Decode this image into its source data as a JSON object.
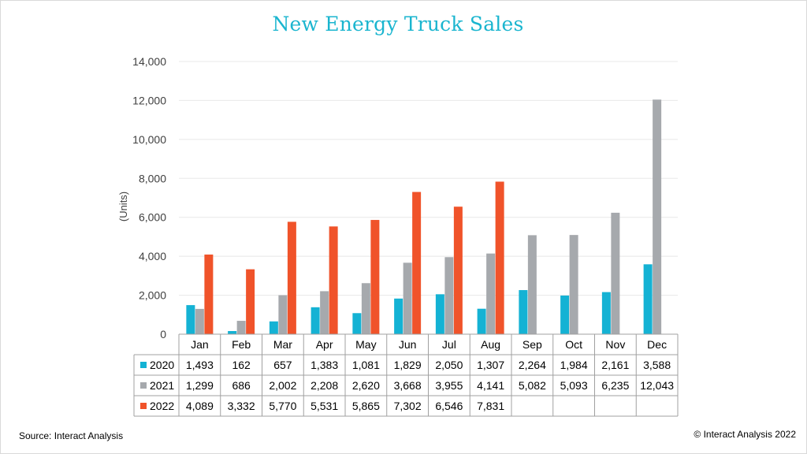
{
  "footer": {
    "source": "Source: Interact Analysis",
    "copyright": "© Interact Analysis 2022"
  },
  "colors": {
    "title": "#1ab5cf",
    "2020": "#14b2d4",
    "2021": "#a6a9ad",
    "2022": "#f0532a",
    "grid": "#e8e8e8",
    "table_border": "#a0a0a0"
  },
  "chart_data": {
    "type": "bar",
    "title": "New Energy Truck Sales",
    "xlabel": "",
    "ylabel": "(Units)",
    "ylim": [
      0,
      14000
    ],
    "yticks": [
      0,
      2000,
      4000,
      6000,
      8000,
      10000,
      12000,
      14000
    ],
    "ytick_labels": [
      "0",
      "2,000",
      "4,000",
      "6,000",
      "8,000",
      "10,000",
      "12,000",
      "14,000"
    ],
    "grid": true,
    "legend_placement": "data table below axis",
    "categories": [
      "Jan",
      "Feb",
      "Mar",
      "Apr",
      "May",
      "Jun",
      "Jul",
      "Aug",
      "Sep",
      "Oct",
      "Nov",
      "Dec"
    ],
    "series": [
      {
        "name": "2020",
        "values": [
          1493,
          162,
          657,
          1383,
          1081,
          1829,
          2050,
          1307,
          2264,
          1984,
          2161,
          3588
        ],
        "labels": [
          "1,493",
          "162",
          "657",
          "1,383",
          "1,081",
          "1,829",
          "2,050",
          "1,307",
          "2,264",
          "1,984",
          "2,161",
          "3,588"
        ]
      },
      {
        "name": "2021",
        "values": [
          1299,
          686,
          2002,
          2208,
          2620,
          3668,
          3955,
          4141,
          5082,
          5093,
          6235,
          12043
        ],
        "labels": [
          "1,299",
          "686",
          "2,002",
          "2,208",
          "2,620",
          "3,668",
          "3,955",
          "4,141",
          "5,082",
          "5,093",
          "6,235",
          "12,043"
        ]
      },
      {
        "name": "2022",
        "values": [
          4089,
          3332,
          5770,
          5531,
          5865,
          7302,
          6546,
          7831,
          null,
          null,
          null,
          null
        ],
        "labels": [
          "4,089",
          "3,332",
          "5,770",
          "5,531",
          "5,865",
          "7,302",
          "6,546",
          "7,831",
          "",
          "",
          "",
          ""
        ]
      }
    ]
  }
}
